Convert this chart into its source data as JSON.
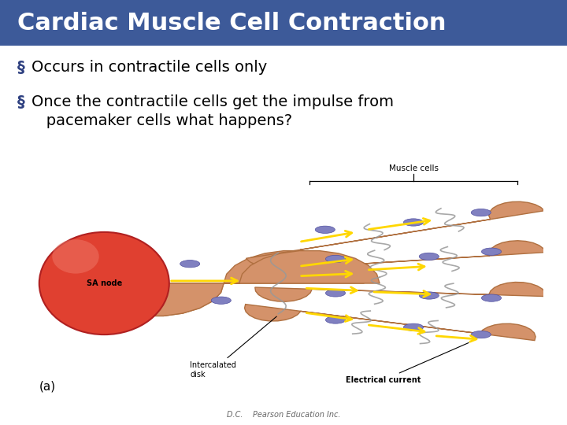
{
  "title": "Cardiac Muscle Cell Contraction",
  "title_bg_color": "#3D5A99",
  "title_text_color": "#FFFFFF",
  "title_fontsize": 22,
  "body_bg_color": "#FFFFFF",
  "bullet_symbol": "§",
  "bullet_color": "#2E4080",
  "bullet_fontsize": 14,
  "bullets": [
    "Occurs in contractile cells only",
    "Once the contractile cells get the impulse from\n   pacemaker cells what happens?"
  ],
  "footer_text": "D.C.    Pearson Education Inc.",
  "footer_fontsize": 7,
  "label_a": "(a)",
  "label_a_fontsize": 11,
  "muscle_color": "#D4926A",
  "muscle_edge": "#B07040",
  "sa_color": "#E04030",
  "sa_highlight": "#F08070",
  "nucleus_color": "#8080C0",
  "nucleus_edge": "#5050A0",
  "arrow_color": "#FFD700",
  "label_color": "#000000",
  "wavy_color": "#999999"
}
